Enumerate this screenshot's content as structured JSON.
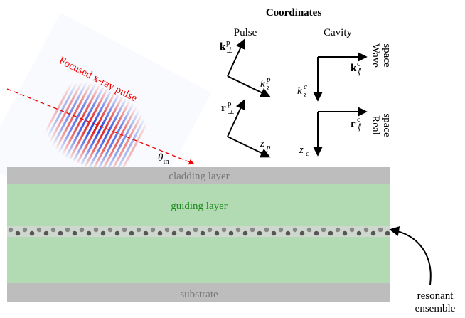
{
  "title": "Coordinates",
  "frames": {
    "pulse": "Pulse",
    "cavity": "Cavity"
  },
  "pulse_label": "Focused x-ray pulse",
  "angle": {
    "base": "θ",
    "sub": "in"
  },
  "axes": {
    "k_perp_p": {
      "base": "k",
      "sup": "p",
      "sub": "⊥"
    },
    "k_z_p": {
      "base": "k",
      "sup": "p",
      "sub": "z"
    },
    "r_perp_p": {
      "base": "r",
      "sup": "p",
      "sub": "⊥"
    },
    "z_p": {
      "base": "z",
      "sub": "p"
    },
    "k_par_c": {
      "base": "k",
      "sup": "c",
      "sub": "∥"
    },
    "k_z_c": {
      "base": "k",
      "sup": "c",
      "sub": "z"
    },
    "r_par_c": {
      "base": "r",
      "sup": "c",
      "sub": "∥"
    },
    "z_c": {
      "base": "z",
      "sub": "c"
    }
  },
  "spaces": {
    "wave": [
      "Wave",
      "space"
    ],
    "real": [
      "Real",
      "space"
    ]
  },
  "layers": {
    "cladding": "cladding layer",
    "guiding": "guiding layer",
    "substrate": "substrate"
  },
  "ensemble": [
    "resonant",
    "ensemble"
  ]
}
